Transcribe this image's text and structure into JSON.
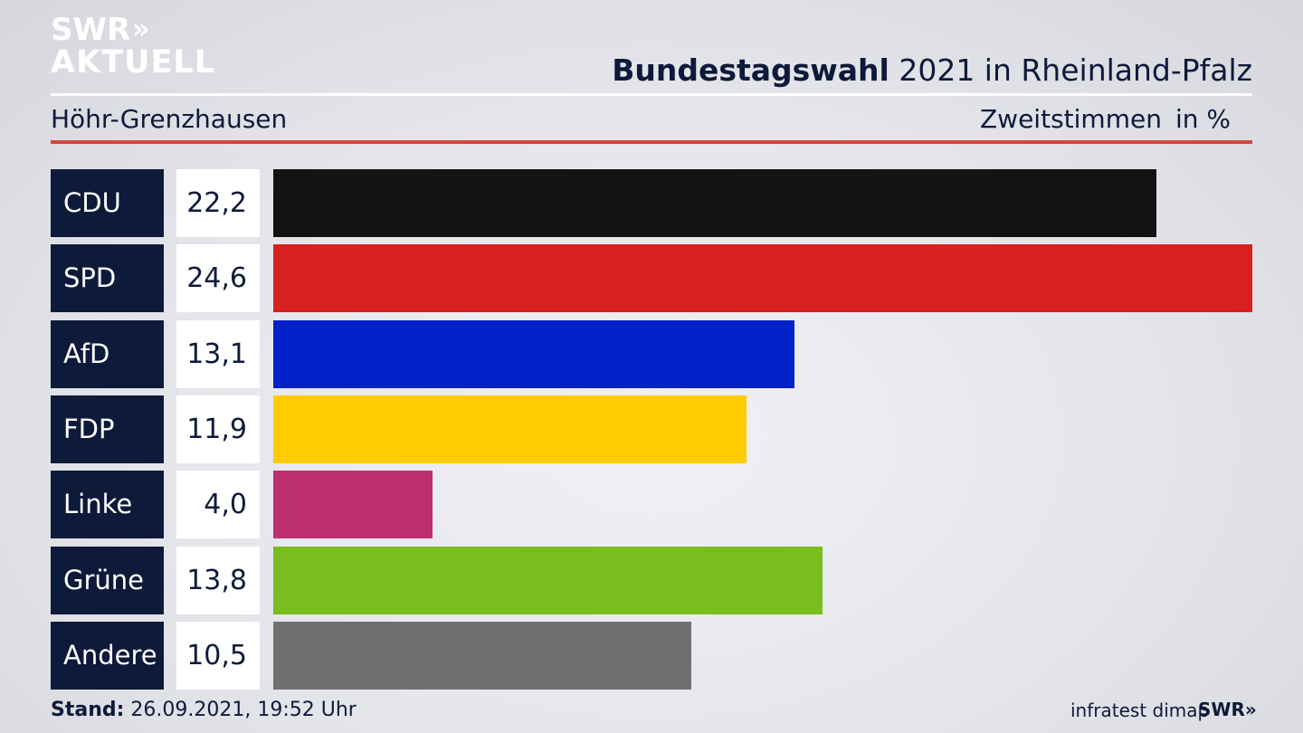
{
  "logo": {
    "line1": "SWR",
    "line1_chevrons": "»",
    "line2": "AKTUELL"
  },
  "header": {
    "title_bold": "Bundestagswahl",
    "title_rest": " 2021 in Rheinland-Pfalz",
    "subtitle": "Höhr-Grenzhausen",
    "metric": "Zweitstimmen",
    "unit": "in %"
  },
  "footer": {
    "stand_label": "Stand:",
    "stand_value": " 26.09.2021, 19:52 Uhr",
    "source": "infratest dimap",
    "logo_text": "SWR",
    "logo_chevrons": "»"
  },
  "chart_data": {
    "type": "bar",
    "orientation": "horizontal",
    "categories": [
      "CDU",
      "SPD",
      "AfD",
      "FDP",
      "Linke",
      "Grüne",
      "Andere"
    ],
    "values": [
      22.2,
      24.6,
      13.1,
      11.9,
      4.0,
      13.8,
      10.5
    ],
    "value_labels": [
      "22,2",
      "24,6",
      "13,1",
      "11,9",
      "4,0",
      "13,8",
      "10,5"
    ],
    "colors": [
      "#131313",
      "#d72020",
      "#0022c8",
      "#ffcc00",
      "#be2f72",
      "#78be1e",
      "#707072"
    ],
    "grid": false
  },
  "colors": {
    "navy": "#0d1a3a",
    "accent_red": "#d64540"
  }
}
